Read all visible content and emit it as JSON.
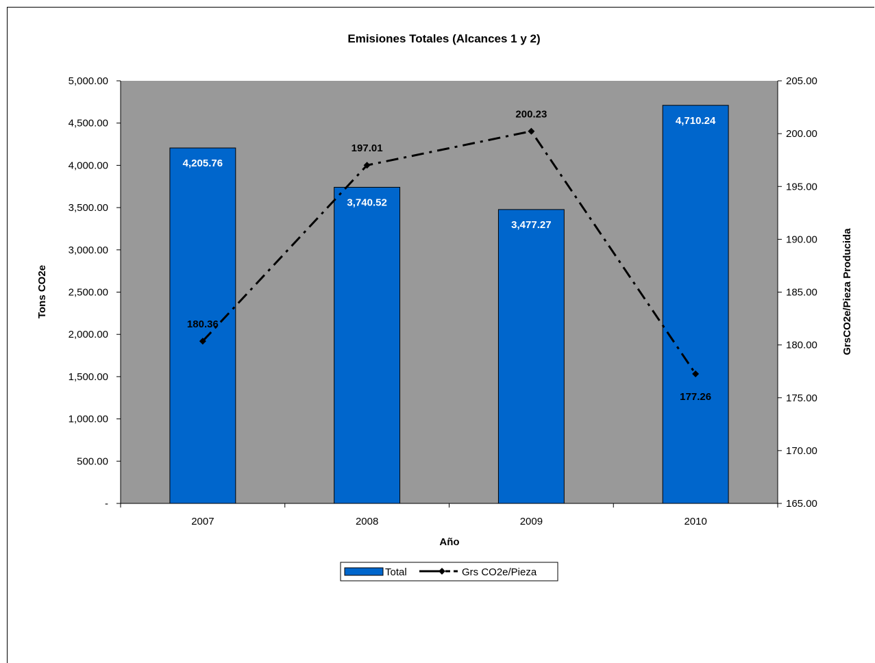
{
  "chart_data": {
    "type": "bar",
    "title": "Emisiones Totales (Alcances 1 y 2)",
    "xlabel": "Año",
    "ylabel": "Tons CO2e",
    "y2label": "GrsCO2e/Pieza Producida",
    "categories": [
      "2007",
      "2008",
      "2009",
      "2010"
    ],
    "ylim": [
      0,
      5000
    ],
    "y2lim": [
      165,
      205
    ],
    "y_ticks": [
      "-",
      "500.00",
      "1,000.00",
      "1,500.00",
      "2,000.00",
      "2,500.00",
      "3,000.00",
      "3,500.00",
      "4,000.00",
      "4,500.00",
      "5,000.00"
    ],
    "y2_ticks": [
      "165.00",
      "170.00",
      "175.00",
      "180.00",
      "185.00",
      "190.00",
      "195.00",
      "200.00",
      "205.00"
    ],
    "series": [
      {
        "name": "Total",
        "type": "bar",
        "axis": "left",
        "values": [
          4205.76,
          3740.52,
          3477.27,
          4710.24
        ],
        "labels": [
          "4,205.76",
          "3,740.52",
          "3,477.27",
          "4,710.24"
        ]
      },
      {
        "name": "Grs CO2e/Pieza",
        "type": "line",
        "axis": "right",
        "values": [
          180.36,
          197.01,
          200.23,
          177.26
        ],
        "labels": [
          "180.36",
          "197.01",
          "200.23",
          "177.26"
        ]
      }
    ],
    "grid": false,
    "legend": "bottom",
    "colors": {
      "bar": "#0066CC",
      "line": "#000000",
      "plot_background": "#999999"
    }
  }
}
